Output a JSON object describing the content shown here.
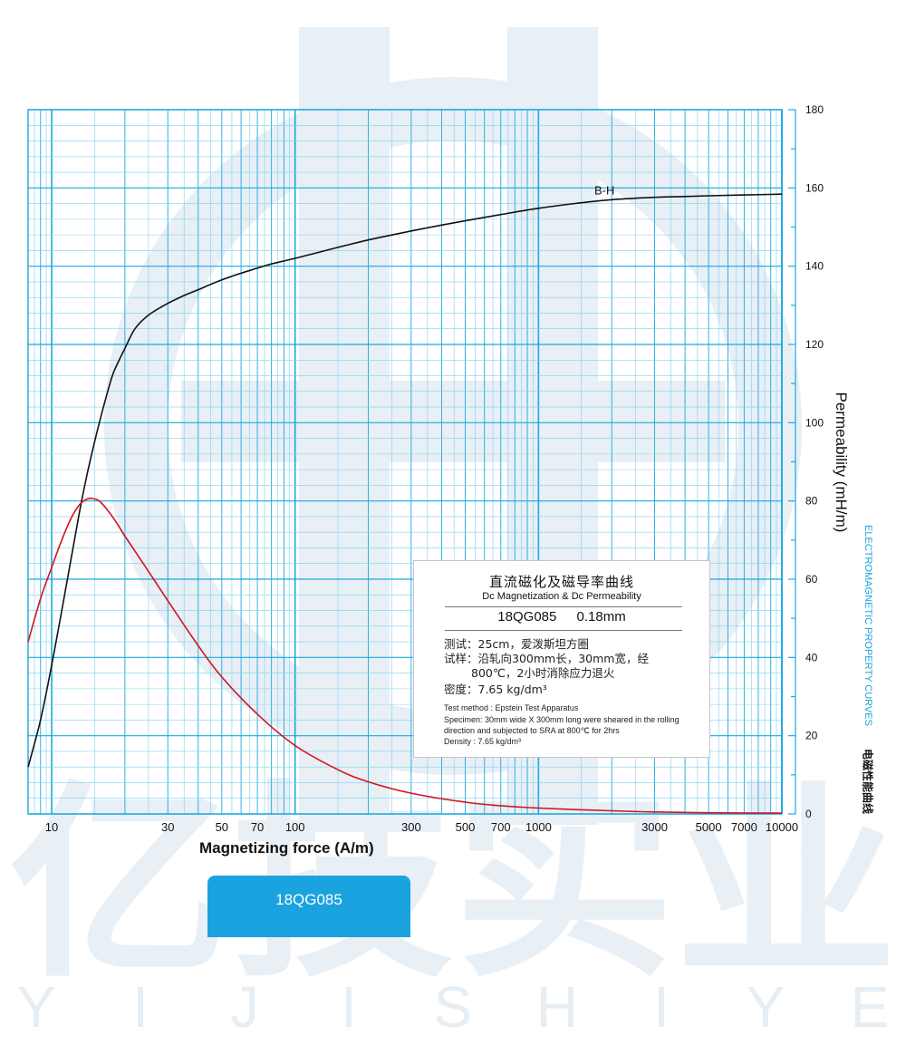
{
  "brand": {
    "cn": "亿技实业",
    "latin": [
      "Y",
      "I",
      "J",
      "I",
      "S",
      "H",
      "I",
      "Y",
      "E"
    ]
  },
  "side": {
    "en": "ELECTROMAGNETIC PROPERTY CURVES",
    "cn": "电磁性能曲线"
  },
  "infobox": {
    "title_cn": "直流磁化及磁导率曲线",
    "title_en": "Dc Magnetization & Dc Permeability",
    "grade": "18QG085",
    "thickness": "0.18mm",
    "test_cn": "测试：25cm，爱泼斯坦方圈",
    "sample_cn_1": "试样：沿轧向300mm长，30mm宽，经",
    "sample_cn_2": "800℃，2小时消除应力退火",
    "density_cn": "密度：7.65 kg/dm³",
    "test_en": "Test method : Epstein Test Apparatus",
    "specimen_en": "Specimen: 30mm wide X 300mm long were sheared in the rolling direction and subjected to SRA at 800℃ for 2hrs",
    "density_en": "Density : 7.65 kg/dm³"
  },
  "tab": {
    "label": "18QG085"
  },
  "colors": {
    "grid": "#19a9e0",
    "grid_minor": "#7fd0f0",
    "bh_curve": "#111111",
    "mu_curve": "#d6121c",
    "tab": "#1aa3df",
    "watermark": "#e8eff5"
  },
  "chart_data": {
    "type": "line",
    "xlabel": "Magnetizing force (A/m)",
    "ylabel": "Permeability (mH/m)",
    "x_scale": "log",
    "xlim": [
      8,
      10000
    ],
    "ylim": [
      0,
      180
    ],
    "x_ticks": [
      10,
      30,
      50,
      70,
      100,
      300,
      500,
      700,
      1000,
      3000,
      5000,
      7000,
      10000
    ],
    "y_ticks": [
      0,
      20,
      40,
      60,
      80,
      100,
      120,
      140,
      160,
      180
    ],
    "grid": true,
    "series": [
      {
        "name": "B-H",
        "x": [
          8,
          9,
          10,
          11,
          12,
          13,
          14,
          15,
          16,
          17,
          18,
          20,
          22,
          25,
          30,
          35,
          40,
          50,
          60,
          70,
          80,
          100,
          150,
          200,
          300,
          400,
          500,
          700,
          1000,
          1500,
          2000,
          3000,
          4000,
          5000,
          7000,
          10000
        ],
        "y": [
          12,
          24,
          38,
          52,
          65,
          77,
          87,
          95,
          102,
          108,
          113,
          119,
          124,
          127.5,
          130.5,
          132.5,
          134,
          136.5,
          138.2,
          139.5,
          140.6,
          142,
          144.8,
          146.7,
          149,
          150.5,
          151.6,
          153.2,
          154.8,
          156.2,
          157,
          157.6,
          157.8,
          158,
          158.2,
          158.4
        ]
      },
      {
        "name": "",
        "x": [
          8,
          9,
          10,
          11,
          12,
          13,
          14,
          15,
          16,
          18,
          20,
          25,
          30,
          40,
          50,
          70,
          100,
          150,
          200,
          300,
          500,
          700,
          1000,
          2000,
          3000,
          5000,
          10000
        ],
        "y": [
          44,
          55,
          63,
          70,
          75.5,
          79,
          80.5,
          80.5,
          79.5,
          75.5,
          71,
          62,
          54.5,
          43,
          35,
          25.5,
          17.5,
          11.3,
          8.2,
          5.3,
          3,
          2.1,
          1.5,
          0.8,
          0.5,
          0.3,
          0.2
        ]
      }
    ]
  }
}
